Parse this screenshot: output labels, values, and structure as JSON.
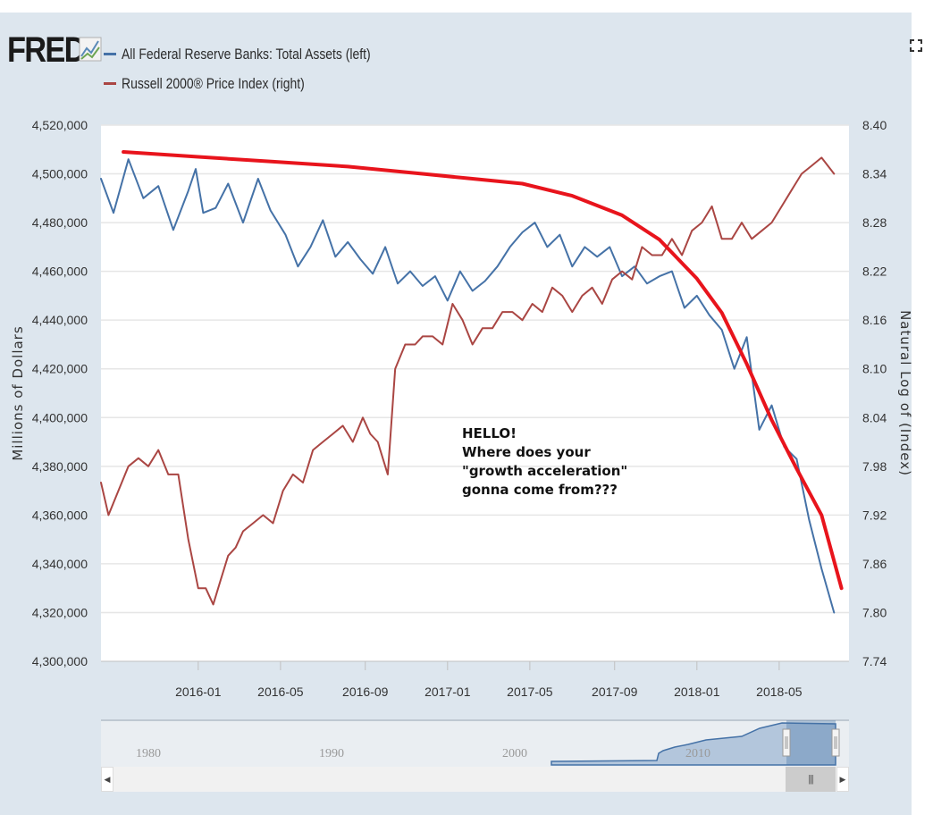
{
  "header": {
    "logo_text": "FRED",
    "fullscreen_icon": "fullscreen-icon"
  },
  "annotation": {
    "lines": [
      "HELLO!",
      "Where does your",
      "\"growth acceleration\"",
      "gonna come from???"
    ]
  },
  "chart_data": {
    "type": "line",
    "title": "",
    "ylabel_left": "Millions of Dollars",
    "ylabel_right": "Natural Log of (Index)",
    "left_axis": {
      "range": [
        4300000,
        4520000
      ],
      "ticks": [
        "4,300,000",
        "4,320,000",
        "4,340,000",
        "4,360,000",
        "4,380,000",
        "4,400,000",
        "4,420,000",
        "4,440,000",
        "4,460,000",
        "4,480,000",
        "4,500,000",
        "4,520,000"
      ]
    },
    "right_axis": {
      "range": [
        7.74,
        8.4
      ],
      "ticks": [
        "7.74",
        "7.80",
        "7.86",
        "7.92",
        "7.98",
        "8.04",
        "8.10",
        "8.16",
        "8.22",
        "8.28",
        "8.34",
        "8.40"
      ]
    },
    "x_axis": {
      "range": [
        2015.61,
        2018.61
      ],
      "ticks": [
        {
          "label": "2016-01",
          "t": 2016.0
        },
        {
          "label": "2016-05",
          "t": 2016.33
        },
        {
          "label": "2016-09",
          "t": 2016.67
        },
        {
          "label": "2017-01",
          "t": 2017.0
        },
        {
          "label": "2017-05",
          "t": 2017.33
        },
        {
          "label": "2017-09",
          "t": 2017.67
        },
        {
          "label": "2018-01",
          "t": 2018.0
        },
        {
          "label": "2018-05",
          "t": 2018.33
        }
      ]
    },
    "grid": true,
    "legend": {
      "position": "top-left",
      "entries": [
        {
          "label": "All Federal Reserve Banks: Total Assets (left)",
          "color": "#4572a7"
        },
        {
          "label": "Russell 2000® Price Index (right)",
          "color": "#aa4643"
        }
      ]
    },
    "series": [
      {
        "name": "All Federal Reserve Banks: Total Assets (left)",
        "axis": "left",
        "color": "#4572a7",
        "t": [
          2015.61,
          2015.66,
          2015.72,
          2015.78,
          2015.84,
          2015.9,
          2015.96,
          2015.99,
          2016.02,
          2016.07,
          2016.12,
          2016.18,
          2016.24,
          2016.29,
          2016.35,
          2016.4,
          2016.45,
          2016.5,
          2016.55,
          2016.6,
          2016.65,
          2016.7,
          2016.75,
          2016.8,
          2016.85,
          2016.9,
          2016.95,
          2017.0,
          2017.05,
          2017.1,
          2017.15,
          2017.2,
          2017.25,
          2017.3,
          2017.35,
          2017.4,
          2017.45,
          2017.5,
          2017.55,
          2017.6,
          2017.65,
          2017.7,
          2017.75,
          2017.8,
          2017.85,
          2017.9,
          2017.95,
          2018.0,
          2018.05,
          2018.1,
          2018.15,
          2018.2,
          2018.25,
          2018.3,
          2018.35,
          2018.4,
          2018.45,
          2018.5,
          2018.55
        ],
        "values": [
          4498000,
          4484000,
          4506000,
          4490000,
          4495000,
          4477000,
          4493000,
          4502000,
          4484000,
          4486000,
          4496000,
          4480000,
          4498000,
          4485000,
          4475000,
          4462000,
          4470000,
          4481000,
          4466000,
          4472000,
          4465000,
          4459000,
          4470000,
          4455000,
          4460000,
          4454000,
          4458000,
          4448000,
          4460000,
          4452000,
          4456000,
          4462000,
          4470000,
          4476000,
          4480000,
          4470000,
          4475000,
          4462000,
          4470000,
          4466000,
          4470000,
          4458000,
          4462000,
          4455000,
          4458000,
          4460000,
          4445000,
          4450000,
          4442000,
          4436000,
          4420000,
          4433000,
          4395000,
          4405000,
          4388000,
          4383000,
          4358000,
          4338000,
          4320000
        ]
      },
      {
        "name": "Russell 2000® Price Index (right)",
        "axis": "right",
        "color": "#aa4643",
        "t": [
          2015.61,
          2015.64,
          2015.68,
          2015.72,
          2015.76,
          2015.8,
          2015.84,
          2015.88,
          2015.92,
          2015.96,
          2016.0,
          2016.03,
          2016.06,
          2016.09,
          2016.12,
          2016.15,
          2016.18,
          2016.22,
          2016.26,
          2016.3,
          2016.34,
          2016.38,
          2016.42,
          2016.46,
          2016.5,
          2016.54,
          2016.58,
          2016.62,
          2016.66,
          2016.69,
          2016.72,
          2016.76,
          2016.79,
          2016.83,
          2016.87,
          2016.9,
          2016.94,
          2016.98,
          2017.02,
          2017.06,
          2017.1,
          2017.14,
          2017.18,
          2017.22,
          2017.26,
          2017.3,
          2017.34,
          2017.38,
          2017.42,
          2017.46,
          2017.5,
          2017.54,
          2017.58,
          2017.62,
          2017.66,
          2017.7,
          2017.74,
          2017.78,
          2017.82,
          2017.86,
          2017.9,
          2017.94,
          2017.98,
          2018.02,
          2018.06,
          2018.1,
          2018.14,
          2018.18,
          2018.22,
          2018.26,
          2018.3,
          2018.34,
          2018.38,
          2018.42,
          2018.46,
          2018.5,
          2018.55
        ],
        "values": [
          7.96,
          7.92,
          7.95,
          7.98,
          7.99,
          7.98,
          8.0,
          7.97,
          7.97,
          7.89,
          7.83,
          7.83,
          7.81,
          7.84,
          7.87,
          7.88,
          7.9,
          7.91,
          7.92,
          7.91,
          7.95,
          7.97,
          7.96,
          8.0,
          8.01,
          8.02,
          8.03,
          8.01,
          8.04,
          8.02,
          8.01,
          7.97,
          8.1,
          8.13,
          8.13,
          8.14,
          8.14,
          8.13,
          8.18,
          8.16,
          8.13,
          8.15,
          8.15,
          8.17,
          8.17,
          8.16,
          8.18,
          8.17,
          8.2,
          8.19,
          8.17,
          8.19,
          8.2,
          8.18,
          8.21,
          8.22,
          8.21,
          8.25,
          8.24,
          8.24,
          8.26,
          8.24,
          8.27,
          8.28,
          8.3,
          8.26,
          8.26,
          8.28,
          8.26,
          8.27,
          8.28,
          8.3,
          8.32,
          8.34,
          8.35,
          8.36,
          8.34
        ]
      },
      {
        "name": "annotation curve",
        "axis": "left",
        "color": "#e8141c",
        "t": [
          2015.7,
          2016.0,
          2016.3,
          2016.6,
          2016.9,
          2017.1,
          2017.3,
          2017.5,
          2017.7,
          2017.85,
          2018.0,
          2018.1,
          2018.2,
          2018.3,
          2018.4,
          2018.5,
          2018.58
        ],
        "values": [
          4509000,
          4507000,
          4505000,
          4503000,
          4500000,
          4498000,
          4496000,
          4491000,
          4483000,
          4473000,
          4457000,
          4443000,
          4422000,
          4399000,
          4379000,
          4360000,
          4330000
        ]
      }
    ],
    "navigator": {
      "labels": [
        {
          "label": "1980",
          "t": 1980
        },
        {
          "label": "1990",
          "t": 1990
        },
        {
          "label": "2000",
          "t": 2000
        },
        {
          "label": "2010",
          "t": 2010
        }
      ]
    }
  }
}
